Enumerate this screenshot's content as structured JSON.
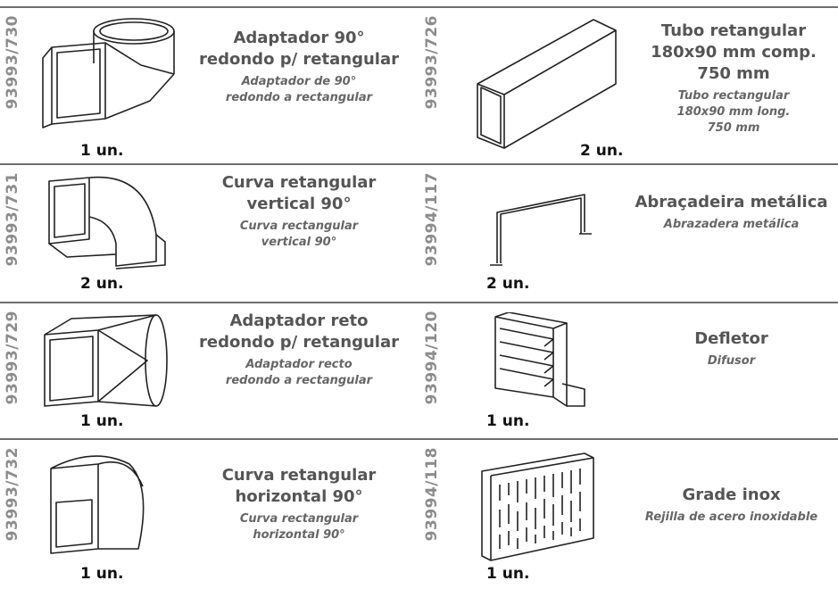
{
  "items": [
    {
      "code": "93993/730",
      "qty": "1 un.",
      "title": [
        "Adaptador 90°",
        "redondo p/ retangular"
      ],
      "subtitle": [
        "Adaptador de 90°",
        "redondo a rectangular"
      ]
    },
    {
      "code": "93993/726",
      "qty": "2 un.",
      "title": [
        "Tubo retangular",
        "180x90 mm comp.",
        "750 mm"
      ],
      "subtitle": [
        "Tubo rectangular",
        "180x90 mm long.",
        "750 mm"
      ]
    },
    {
      "code": "93993/731",
      "qty": "2 un.",
      "title": [
        "Curva retangular",
        "vertical 90°"
      ],
      "subtitle": [
        "Curva rectangular",
        "vertical 90°"
      ]
    },
    {
      "code": "93994/117",
      "qty": "2 un.",
      "title": [
        "Abraçadeira metálica"
      ],
      "subtitle": [
        "Abrazadera metálica"
      ]
    },
    {
      "code": "93993/729",
      "qty": "1 un.",
      "title": [
        "Adaptador reto",
        "redondo p/ retangular"
      ],
      "subtitle": [
        "Adaptador recto",
        "redondo a rectangular"
      ]
    },
    {
      "code": "93994/120",
      "qty": "1 un.",
      "title": [
        "Defletor"
      ],
      "subtitle": [
        "Difusor"
      ]
    },
    {
      "code": "93993/732",
      "qty": "1 un.",
      "title": [
        "Curva retangular",
        "horizontal 90°"
      ],
      "subtitle": [
        "Curva rectangular",
        "horizontal 90°"
      ]
    },
    {
      "code": "93994/118",
      "qty": "1 un.",
      "title": [
        "Grade inox"
      ],
      "subtitle": [
        "Rejilla de acero inoxidable"
      ]
    }
  ]
}
